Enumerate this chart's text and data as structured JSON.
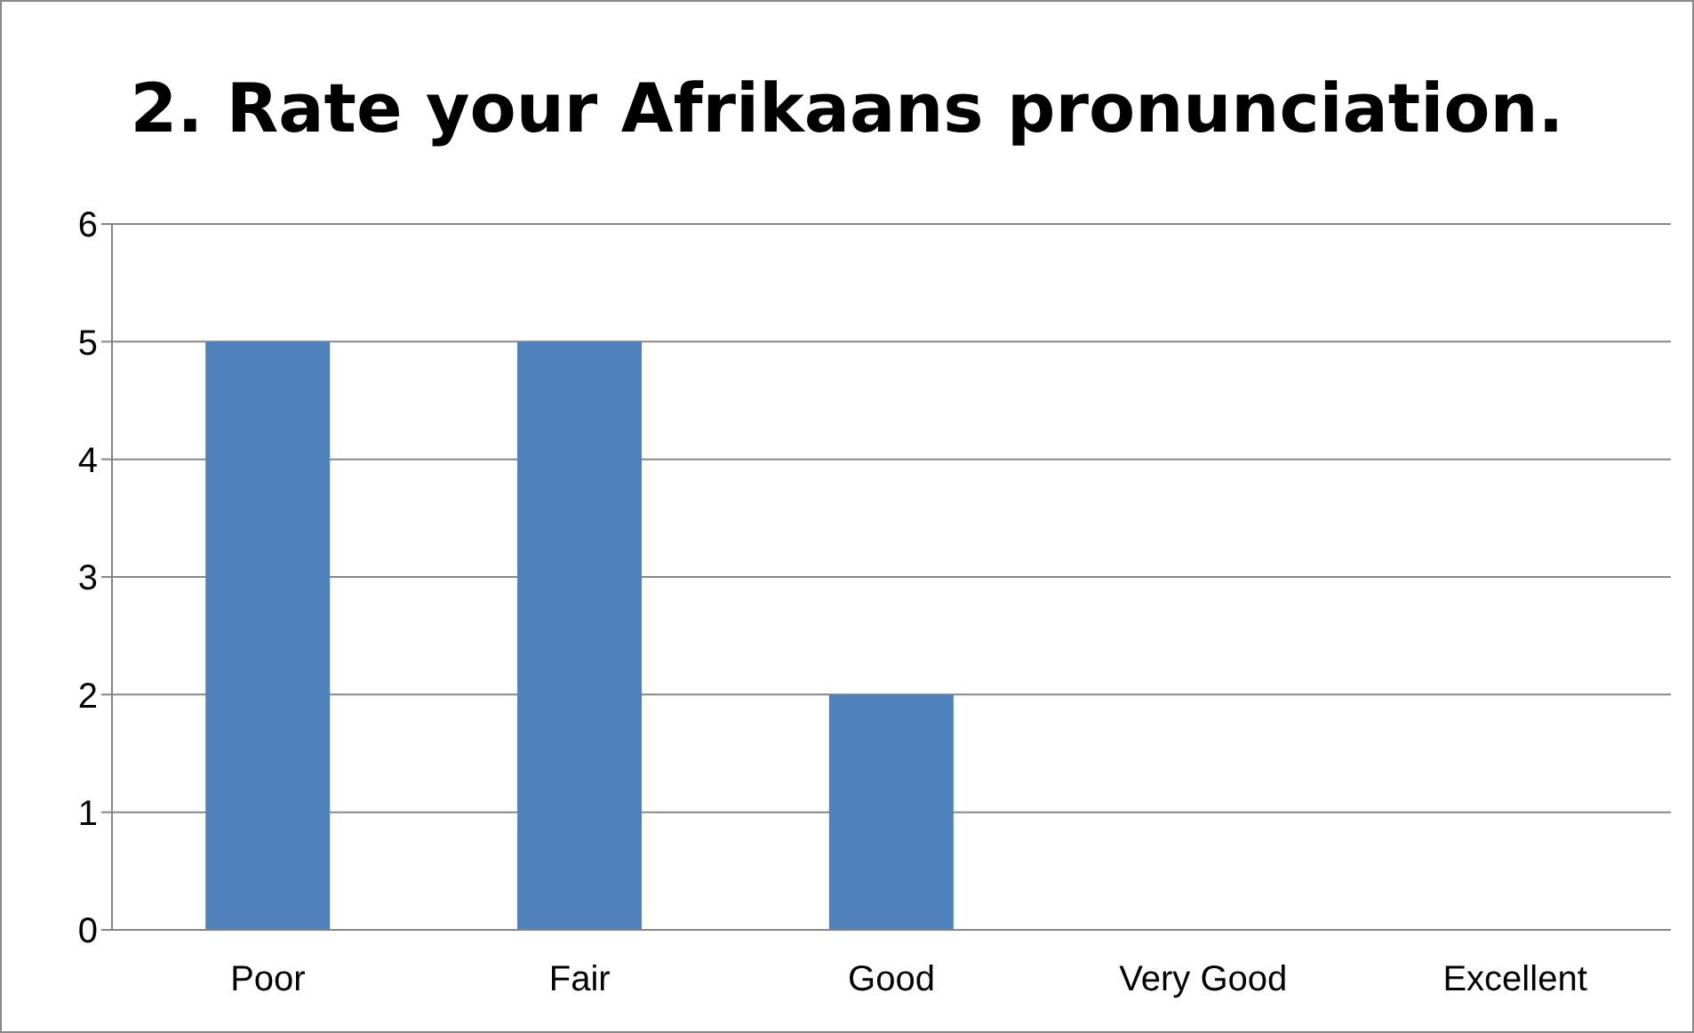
{
  "chart_data": {
    "type": "bar",
    "title": "2. Rate your Afrikaans pronunciation.",
    "categories": [
      "Poor",
      "Fair",
      "Good",
      "Very Good",
      "Excellent"
    ],
    "values": [
      5,
      5,
      2,
      0,
      0
    ],
    "color": "#4f81bd",
    "ylim": [
      0,
      6
    ],
    "yticks": [
      0,
      1,
      2,
      3,
      4,
      5,
      6
    ],
    "grid": "y",
    "legend": false
  }
}
